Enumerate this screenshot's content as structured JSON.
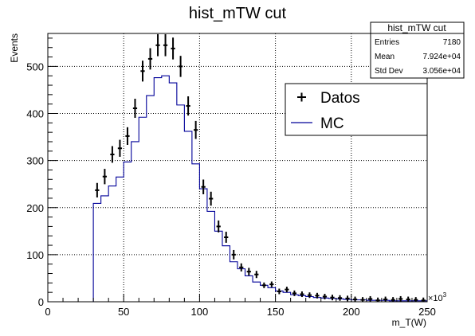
{
  "chart_data": {
    "type": "histogram",
    "title": "hist_mTW cut",
    "xlabel": "m_T(W)",
    "ylabel": "Events",
    "x_multiplier": "×10",
    "x_multiplier_exp": "3",
    "xlim": [
      0,
      250
    ],
    "ylim": [
      0,
      570
    ],
    "x_ticks": [
      0,
      50,
      100,
      150,
      200,
      250
    ],
    "y_ticks": [
      0,
      100,
      200,
      300,
      400,
      500
    ],
    "grid": true,
    "legend_position": "top-right",
    "bin_width": 5,
    "series": [
      {
        "name": "Datos",
        "style": "markers",
        "color": "#000000",
        "x": [
          32.5,
          37.5,
          42.5,
          47.5,
          52.5,
          57.5,
          62.5,
          67.5,
          72.5,
          77.5,
          82.5,
          87.5,
          92.5,
          97.5,
          102.5,
          107.5,
          112.5,
          117.5,
          122.5,
          127.5,
          132.5,
          137.5,
          142.5,
          147.5,
          152.5,
          157.5,
          162.5,
          167.5,
          172.5,
          177.5,
          182.5,
          187.5,
          192.5,
          197.5,
          202.5,
          207.5,
          212.5,
          217.5,
          222.5,
          227.5,
          232.5,
          237.5,
          242.5,
          247.5
        ],
        "y": [
          237,
          266,
          313,
          326,
          352,
          411,
          490,
          516,
          545,
          545,
          538,
          500,
          416,
          365,
          244,
          219,
          160,
          137,
          100,
          73,
          64,
          58,
          35,
          37,
          22,
          26,
          18,
          16,
          14,
          13,
          11,
          9,
          8,
          7,
          5,
          4,
          6,
          3,
          5,
          4,
          6,
          5,
          4,
          3
        ]
      },
      {
        "name": "MC",
        "style": "step",
        "color": "#000099",
        "x_edges": [
          30,
          35,
          40,
          45,
          50,
          55,
          60,
          65,
          70,
          75,
          80,
          85,
          90,
          95,
          100,
          105,
          110,
          115,
          120,
          125,
          130,
          135,
          140,
          145,
          150,
          155,
          160,
          165,
          170,
          175,
          180,
          185,
          190,
          195,
          200,
          205,
          210,
          215,
          220,
          225,
          230,
          235,
          240,
          245,
          250
        ],
        "y": [
          209,
          225,
          246,
          265,
          297,
          340,
          392,
          438,
          476,
          480,
          465,
          418,
          362,
          293,
          240,
          192,
          150,
          119,
          85,
          70,
          55,
          42,
          35,
          30,
          23,
          20,
          15,
          13,
          11,
          9,
          8,
          7,
          6,
          5,
          4,
          4,
          3,
          3,
          3,
          2,
          2,
          2,
          2,
          2
        ]
      }
    ],
    "stats_box": {
      "title": "hist_mTW cut",
      "rows": [
        {
          "label": "Entries",
          "value": "7180"
        },
        {
          "label": "Mean",
          "value": "7.924e+04"
        },
        {
          "label": "Std Dev",
          "value": "3.056e+04"
        }
      ]
    }
  }
}
